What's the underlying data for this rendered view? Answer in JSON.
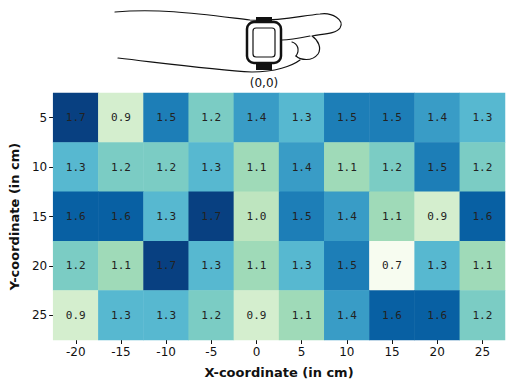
{
  "chart_data": {
    "type": "heatmap",
    "annotation": "(0,0)",
    "x_label": "X-coordinate (in cm)",
    "y_label": "Y-coordinate (in cm)",
    "x": [
      -20,
      -15,
      -10,
      -5,
      0,
      5,
      10,
      15,
      20,
      25
    ],
    "y": [
      5,
      10,
      15,
      20,
      25
    ],
    "cells": [
      [
        1.7,
        0.9,
        1.5,
        1.2,
        1.4,
        1.3,
        1.5,
        1.5,
        1.4,
        1.3
      ],
      [
        1.3,
        1.2,
        1.2,
        1.3,
        1.1,
        1.4,
        1.1,
        1.2,
        1.5,
        1.2
      ],
      [
        1.6,
        1.6,
        1.3,
        1.7,
        1.0,
        1.5,
        1.4,
        1.1,
        0.9,
        1.6
      ],
      [
        1.2,
        1.1,
        1.7,
        1.3,
        1.1,
        1.3,
        1.5,
        0.7,
        1.3,
        1.1
      ],
      [
        0.9,
        1.3,
        1.3,
        1.2,
        0.9,
        1.1,
        1.4,
        1.6,
        1.6,
        1.2
      ]
    ],
    "cell_labels": [
      [
        "1.7",
        "0.9",
        "1.5",
        "1.2",
        "1.4",
        "1.3",
        "1.5",
        "1.5",
        "1.4",
        "1.3"
      ],
      [
        "1.3",
        "1.2",
        "1.2",
        "1.3",
        "1.1",
        "1.4",
        "1.1",
        "1.2",
        "1.5",
        "1.2"
      ],
      [
        "1.6",
        "1.6",
        "1.3",
        "1.7",
        "1.0",
        "1.5",
        "1.4",
        "1.1",
        "0.9",
        "1.6"
      ],
      [
        "1.2",
        "1.1",
        "1.7",
        "1.3",
        "1.1",
        "1.3",
        "1.5",
        "0.7",
        "1.3",
        "1.1"
      ],
      [
        "0.9",
        "1.3",
        "1.3",
        "1.2",
        "0.9",
        "1.1",
        "1.4",
        "1.6",
        "1.6",
        "1.2"
      ]
    ],
    "color_range": [
      0.7,
      1.7
    ],
    "data_labels": true
  }
}
